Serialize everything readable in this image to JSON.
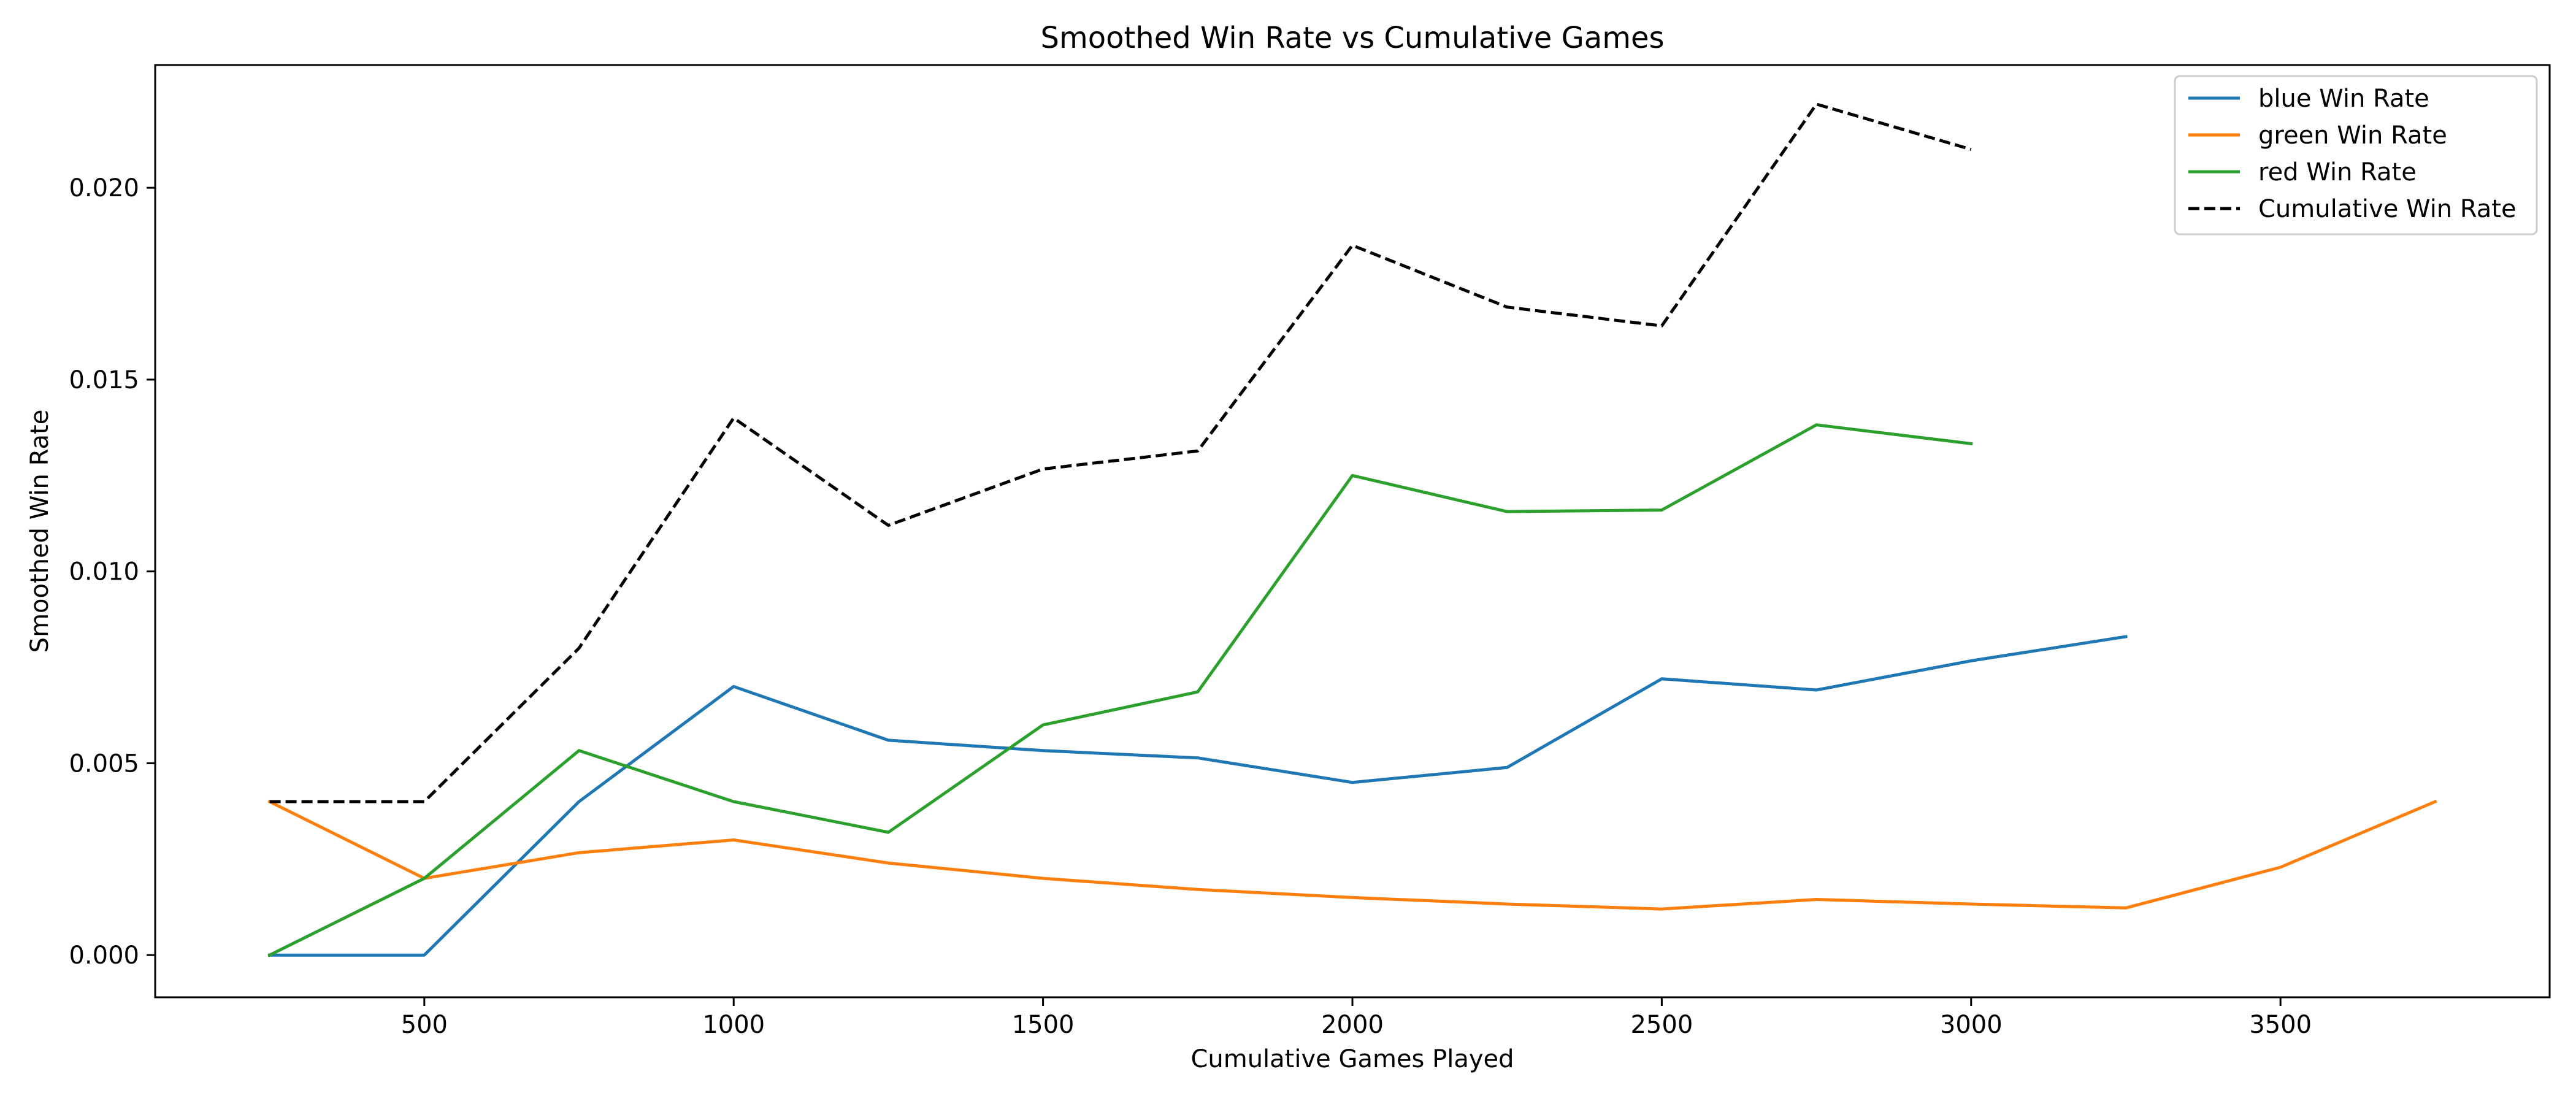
{
  "chart_data": {
    "type": "line",
    "title": "Smoothed Win Rate vs Cumulative Games",
    "xlabel": "Cumulative Games Played",
    "ylabel": "Smoothed Win Rate",
    "xlim": [
      65,
      3935
    ],
    "ylim": [
      -0.0011,
      0.0232
    ],
    "xticks": [
      500,
      1000,
      1500,
      2000,
      2500,
      3000,
      3500
    ],
    "yticks": [
      0.0,
      0.005,
      0.01,
      0.015,
      0.02
    ],
    "xtick_labels": [
      "500",
      "1000",
      "1500",
      "2000",
      "2500",
      "3000",
      "3500"
    ],
    "ytick_labels": [
      "0.000",
      "0.005",
      "0.010",
      "0.015",
      "0.020"
    ],
    "grid": false,
    "legend_position": "top-right",
    "series": [
      {
        "name": "blue Win Rate",
        "color": "#1f77b4",
        "dash": "solid",
        "x": [
          250,
          500,
          750,
          1000,
          1250,
          1500,
          1750,
          2000,
          2250,
          2500,
          2750,
          3000,
          3250
        ],
        "values": [
          0.0,
          0.0,
          0.004,
          0.007,
          0.0056,
          0.00533,
          0.00514,
          0.0045,
          0.00489,
          0.0072,
          0.00691,
          0.00767,
          0.0083
        ]
      },
      {
        "name": "green Win Rate",
        "color": "#ff7f0e",
        "dash": "solid",
        "x": [
          250,
          500,
          750,
          1000,
          1250,
          1500,
          1750,
          2000,
          2250,
          2500,
          2750,
          3000,
          3250,
          3500,
          3750
        ],
        "values": [
          0.004,
          0.002,
          0.00267,
          0.003,
          0.0024,
          0.002,
          0.00171,
          0.0015,
          0.00133,
          0.0012,
          0.00145,
          0.00133,
          0.00123,
          0.00229,
          0.004
        ]
      },
      {
        "name": "red Win Rate",
        "color": "#2ca02c",
        "dash": "solid",
        "x": [
          250,
          500,
          750,
          1000,
          1250,
          1500,
          1750,
          2000,
          2250,
          2500,
          2750,
          3000
        ],
        "values": [
          0.0,
          0.002,
          0.00533,
          0.004,
          0.0032,
          0.006,
          0.00686,
          0.0125,
          0.01156,
          0.0116,
          0.01382,
          0.01333
        ]
      },
      {
        "name": "Cumulative Win Rate",
        "color": "#000000",
        "dash": "dashed",
        "x": [
          250,
          500,
          750,
          1000,
          1250,
          1500,
          1750,
          2000,
          2250,
          2500,
          2750,
          3000
        ],
        "values": [
          0.004,
          0.004,
          0.008,
          0.014,
          0.0112,
          0.01267,
          0.01314,
          0.0185,
          0.01689,
          0.0164,
          0.02218,
          0.021
        ]
      }
    ]
  }
}
